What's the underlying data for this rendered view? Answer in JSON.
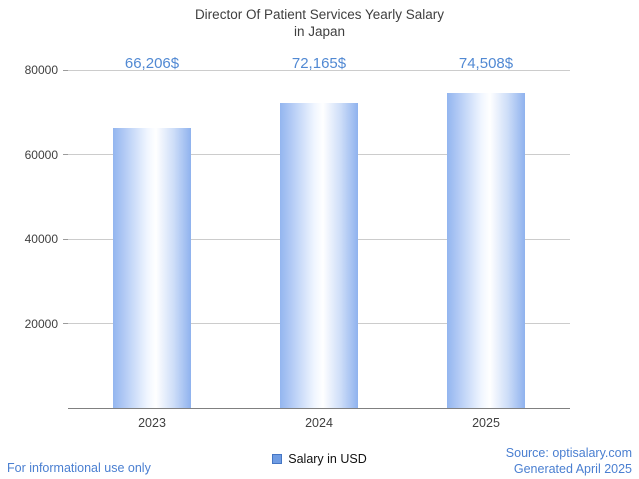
{
  "chart_data": {
    "type": "bar",
    "title": "Director Of Patient Services Yearly Salary in Japan",
    "title_lines": [
      "Director Of Patient Services Yearly Salary",
      "in Japan"
    ],
    "categories": [
      "2023",
      "2024",
      "2025"
    ],
    "values": [
      66206,
      72165,
      74508
    ],
    "value_labels": [
      "66,206$",
      "72,165$",
      "74,508$"
    ],
    "series_name": "Salary in USD",
    "xlabel": "",
    "ylabel": "",
    "ylim": [
      0,
      80000
    ],
    "yticks": [
      20000,
      40000,
      60000,
      80000
    ],
    "grid": true,
    "legend_position": "bottom"
  },
  "footer": {
    "disclaimer": "For informational use only",
    "source": "Source: optisalary.com",
    "generated": "Generated April 2025"
  },
  "colors": {
    "bar_edge": "#93b5ef",
    "bar_center": "#ffffff",
    "value_label": "#5189d3",
    "footer_text": "#4a7fd1",
    "title_text": "#3f3f3f",
    "axis_text": "#404040",
    "gridline": "#cccccc",
    "baseline": "#808080",
    "legend_marker": "#6f9ce3"
  }
}
